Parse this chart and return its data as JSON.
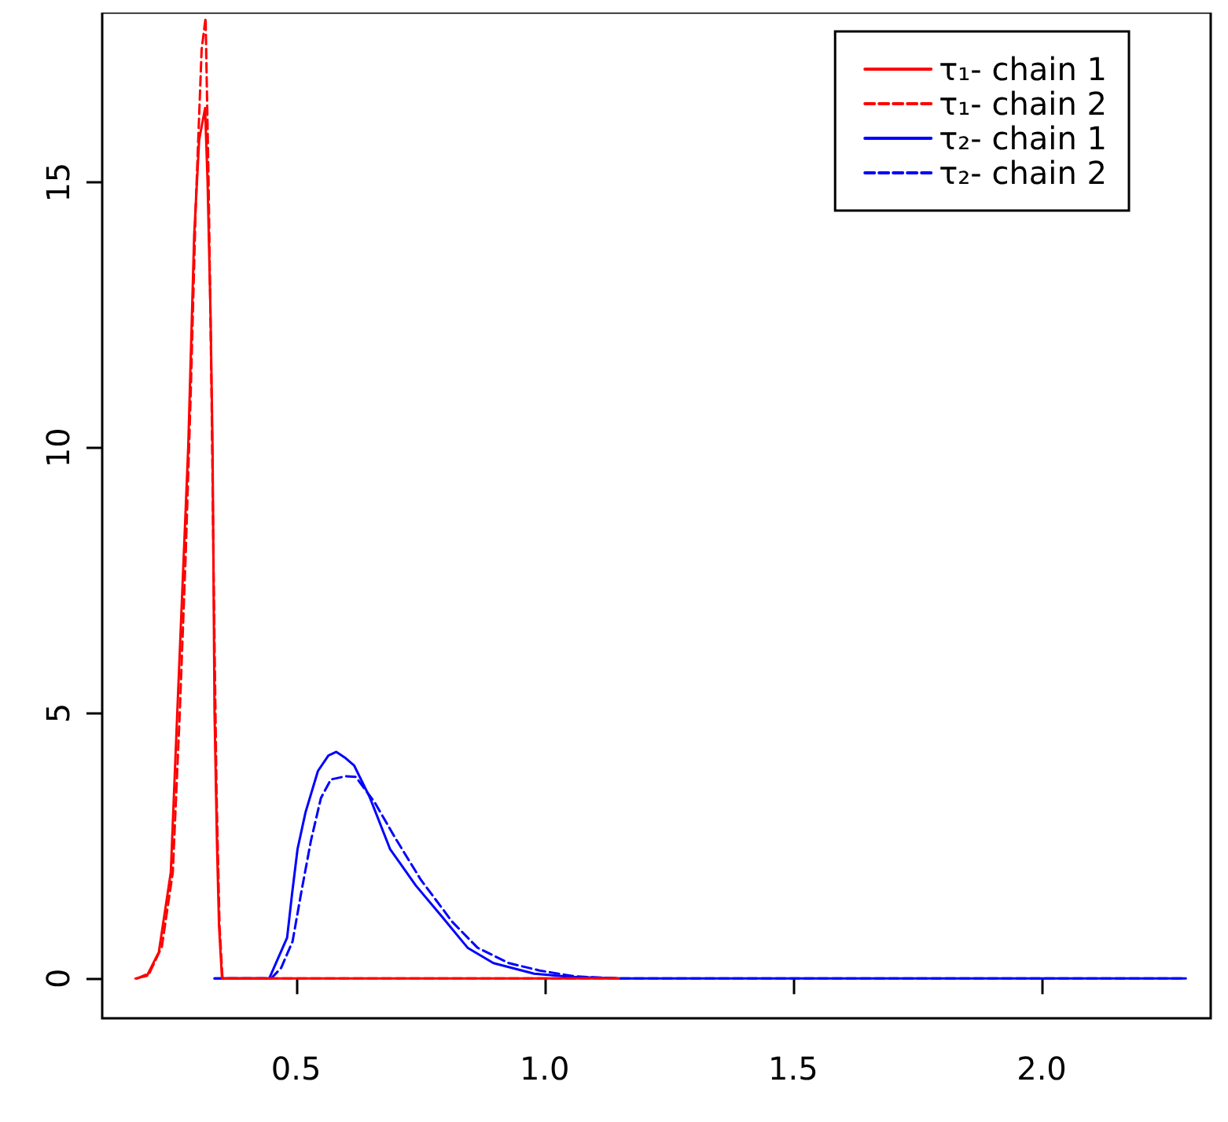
{
  "chart_data": {
    "type": "line",
    "xlim": [
      0.11,
      2.34
    ],
    "xticks": [
      0.5,
      {
        "value": 1,
        "label": "1.0"
      },
      1.5,
      {
        "value": 2,
        "label": "2.0"
      }
    ],
    "ylim": [
      -0.75,
      18.2
    ],
    "yticks": [
      0,
      5,
      10,
      15
    ],
    "grid": false,
    "legend": "top right",
    "marker": "none",
    "series": [
      {
        "name": "τ₁- chain 1",
        "color": "#ff0000",
        "line_style": "solid",
        "x": [
          0.177,
          0.2,
          0.224,
          0.248,
          0.261,
          0.272,
          0.283,
          0.295,
          0.305,
          0.317,
          0.322,
          0.328,
          0.332,
          0.336,
          0.341,
          0.345,
          0.351,
          1.149
        ],
        "values": [
          0,
          0.05,
          0.5,
          2,
          5,
          7.5,
          10,
          14,
          15.8,
          16.4,
          15,
          12.5,
          10,
          5,
          2.5,
          1,
          0,
          0
        ]
      },
      {
        "name": "τ₁- chain 2",
        "color": "#ff0000",
        "line_style": "dashed",
        "x": [
          0.18,
          0.205,
          0.23,
          0.252,
          0.266,
          0.278,
          0.288,
          0.298,
          0.31,
          0.318,
          0.324,
          0.33,
          0.335,
          0.34,
          0.346,
          0.352,
          1.149
        ],
        "values": [
          0,
          0.1,
          0.6,
          2,
          5,
          8,
          11,
          14.5,
          17.5,
          18.1,
          15,
          11,
          7,
          3.5,
          1,
          0,
          0
        ]
      },
      {
        "name": "τ₂- chain 1",
        "color": "#0000ff",
        "line_style": "solid",
        "x": [
          0.336,
          0.446,
          0.46,
          0.482,
          0.492,
          0.503,
          0.519,
          0.544,
          0.565,
          0.581,
          0.6,
          0.617,
          0.648,
          0.689,
          0.741,
          0.793,
          0.845,
          0.897,
          0.979,
          1.052,
          1.15,
          2.29
        ],
        "values": [
          0,
          0,
          0.3,
          0.77,
          1.6,
          2.44,
          3.13,
          3.91,
          4.2,
          4.27,
          4.15,
          4.01,
          3.42,
          2.44,
          1.75,
          1.17,
          0.58,
          0.29,
          0.09,
          0.03,
          0,
          0
        ]
      },
      {
        "name": "τ₂- chain 2",
        "color": "#0000ff",
        "line_style": "dashed",
        "x": [
          0.336,
          0.45,
          0.47,
          0.493,
          0.51,
          0.53,
          0.55,
          0.57,
          0.6,
          0.62,
          0.658,
          0.7,
          0.751,
          0.814,
          0.865,
          0.928,
          0.99,
          1.06,
          1.15,
          2.29
        ],
        "values": [
          0,
          0,
          0.2,
          0.7,
          1.6,
          2.6,
          3.4,
          3.75,
          3.81,
          3.8,
          3.32,
          2.64,
          1.86,
          1.07,
          0.58,
          0.29,
          0.15,
          0.04,
          0,
          0
        ]
      }
    ]
  }
}
